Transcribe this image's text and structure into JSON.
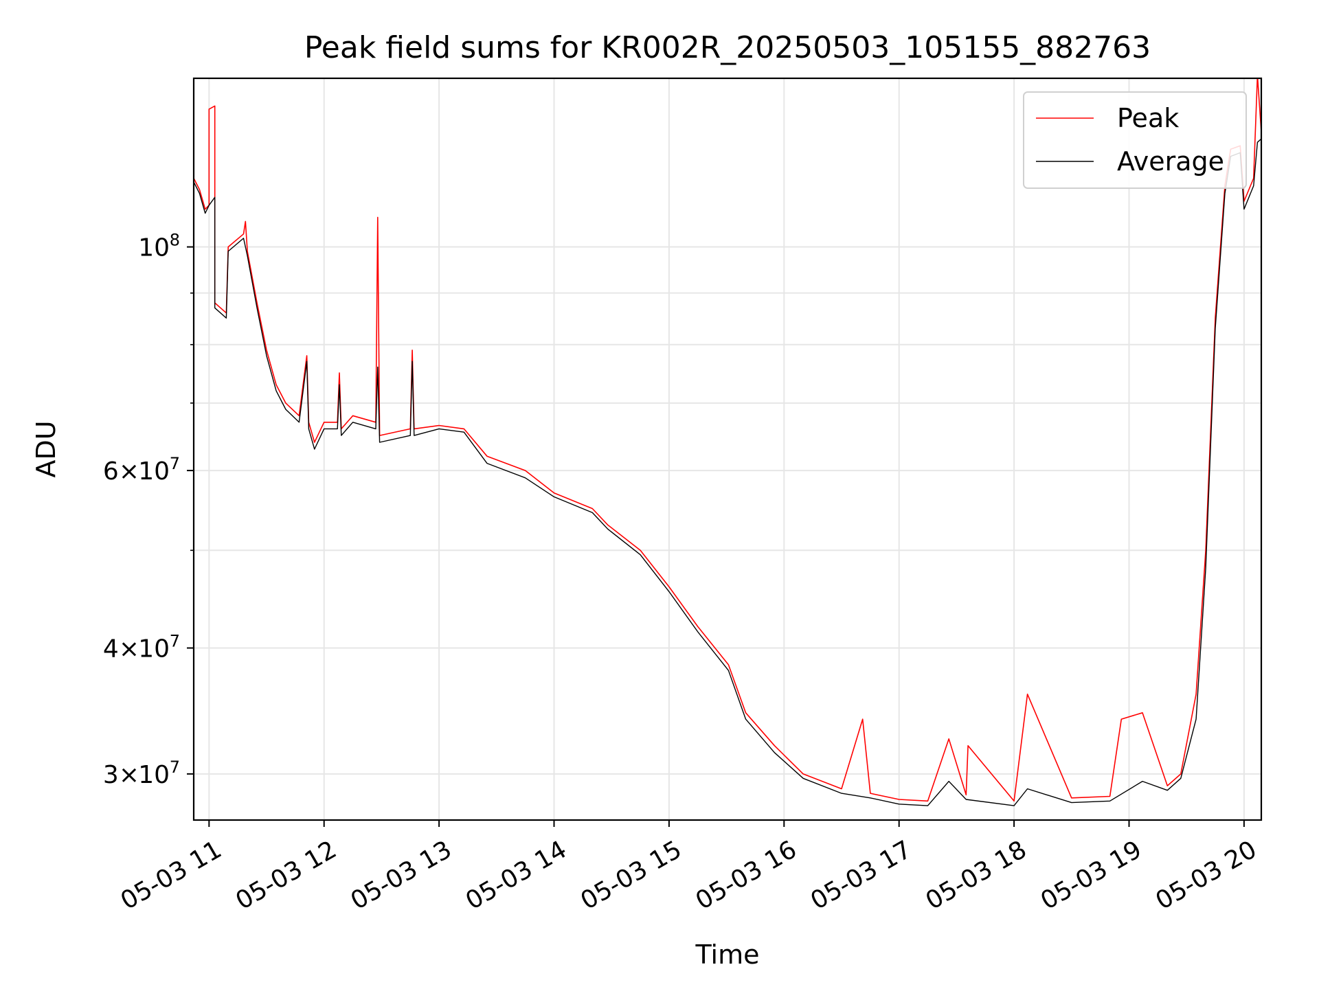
{
  "chart_data": {
    "type": "line",
    "title": "Peak field sums for KR002R_20250503_105155_882763",
    "xlabel": "Time",
    "ylabel": "ADU",
    "y_scale": "log",
    "grid": true,
    "legend_position": "top-right",
    "xlim": [
      "2025-05-03 10:52",
      "2025-05-03 20:09"
    ],
    "ylim": [
      27000000,
      147000000
    ],
    "x_ticks": [
      {
        "value": "2025-05-03 11:00",
        "label": "05-03 11"
      },
      {
        "value": "2025-05-03 12:00",
        "label": "05-03 12"
      },
      {
        "value": "2025-05-03 13:00",
        "label": "05-03 13"
      },
      {
        "value": "2025-05-03 14:00",
        "label": "05-03 14"
      },
      {
        "value": "2025-05-03 15:00",
        "label": "05-03 15"
      },
      {
        "value": "2025-05-03 16:00",
        "label": "05-03 16"
      },
      {
        "value": "2025-05-03 17:00",
        "label": "05-03 17"
      },
      {
        "value": "2025-05-03 18:00",
        "label": "05-03 18"
      },
      {
        "value": "2025-05-03 19:00",
        "label": "05-03 19"
      },
      {
        "value": "2025-05-03 20:00",
        "label": "05-03 20"
      }
    ],
    "y_ticks": [
      {
        "value": 30000000,
        "mantissa": "3",
        "exponent": "7"
      },
      {
        "value": 40000000,
        "mantissa": "4",
        "exponent": "7"
      },
      {
        "value": 60000000,
        "mantissa": "6",
        "exponent": "7"
      },
      {
        "value": 100000000,
        "mantissa": "",
        "exponent": "8"
      }
    ],
    "y_minor_ticks": [
      50000000,
      70000000,
      80000000,
      90000000
    ],
    "series": [
      {
        "name": "Peak",
        "color": "#ff0000",
        "points": [
          [
            "2025-05-03 10:52",
            117000000
          ],
          [
            "2025-05-03 10:55",
            114000000
          ],
          [
            "2025-05-03 10:58",
            109000000
          ],
          [
            "2025-05-03 11:00",
            110000000
          ],
          [
            "2025-05-03 11:00",
            137000000
          ],
          [
            "2025-05-03 11:03",
            138000000
          ],
          [
            "2025-05-03 11:03",
            88000000
          ],
          [
            "2025-05-03 11:09",
            86000000
          ],
          [
            "2025-05-03 11:10",
            100000000
          ],
          [
            "2025-05-03 11:18",
            103000000
          ],
          [
            "2025-05-03 11:19",
            106000000
          ],
          [
            "2025-05-03 11:20",
            99000000
          ],
          [
            "2025-05-03 11:25",
            88000000
          ],
          [
            "2025-05-03 11:30",
            79000000
          ],
          [
            "2025-05-03 11:35",
            73000000
          ],
          [
            "2025-05-03 11:40",
            70000000
          ],
          [
            "2025-05-03 11:47",
            68000000
          ],
          [
            "2025-05-03 11:51",
            78000000
          ],
          [
            "2025-05-03 11:52",
            67000000
          ],
          [
            "2025-05-03 11:55",
            64000000
          ],
          [
            "2025-05-03 12:00",
            67000000
          ],
          [
            "2025-05-03 12:07",
            67000000
          ],
          [
            "2025-05-03 12:08",
            75000000
          ],
          [
            "2025-05-03 12:09",
            66000000
          ],
          [
            "2025-05-03 12:15",
            68000000
          ],
          [
            "2025-05-03 12:27",
            67000000
          ],
          [
            "2025-05-03 12:28",
            107000000
          ],
          [
            "2025-05-03 12:29",
            65000000
          ],
          [
            "2025-05-03 12:45",
            66000000
          ],
          [
            "2025-05-03 12:46",
            79000000
          ],
          [
            "2025-05-03 12:47",
            66000000
          ],
          [
            "2025-05-03 13:00",
            66500000
          ],
          [
            "2025-05-03 13:13",
            66000000
          ],
          [
            "2025-05-03 13:25",
            62000000
          ],
          [
            "2025-05-03 13:45",
            60000000
          ],
          [
            "2025-05-03 14:00",
            57000000
          ],
          [
            "2025-05-03 14:20",
            55000000
          ],
          [
            "2025-05-03 14:28",
            53000000
          ],
          [
            "2025-05-03 14:45",
            50000000
          ],
          [
            "2025-05-03 15:00",
            46000000
          ],
          [
            "2025-05-03 15:15",
            42000000
          ],
          [
            "2025-05-03 15:31",
            38500000
          ],
          [
            "2025-05-03 15:40",
            34500000
          ],
          [
            "2025-05-03 15:55",
            32000000
          ],
          [
            "2025-05-03 16:10",
            30000000
          ],
          [
            "2025-05-03 16:30",
            29000000
          ],
          [
            "2025-05-03 16:41",
            34000000
          ],
          [
            "2025-05-03 16:45",
            28700000
          ],
          [
            "2025-05-03 17:00",
            28300000
          ],
          [
            "2025-05-03 17:15",
            28200000
          ],
          [
            "2025-05-03 17:26",
            32500000
          ],
          [
            "2025-05-03 17:35",
            28600000
          ],
          [
            "2025-05-03 17:36",
            32000000
          ],
          [
            "2025-05-03 18:00",
            28200000
          ],
          [
            "2025-05-03 18:07",
            36000000
          ],
          [
            "2025-05-03 18:30",
            28400000
          ],
          [
            "2025-05-03 18:50",
            28500000
          ],
          [
            "2025-05-03 18:56",
            34000000
          ],
          [
            "2025-05-03 19:07",
            34500000
          ],
          [
            "2025-05-03 19:20",
            29200000
          ],
          [
            "2025-05-03 19:27",
            30000000
          ],
          [
            "2025-05-03 19:35",
            36000000
          ],
          [
            "2025-05-03 19:40",
            50000000
          ],
          [
            "2025-05-03 19:45",
            85000000
          ],
          [
            "2025-05-03 19:50",
            115000000
          ],
          [
            "2025-05-03 19:53",
            125000000
          ],
          [
            "2025-05-03 19:58",
            126000000
          ],
          [
            "2025-05-03 20:00",
            111000000
          ],
          [
            "2025-05-03 20:05",
            117000000
          ],
          [
            "2025-05-03 20:07",
            148000000
          ],
          [
            "2025-05-03 20:09",
            130000000
          ]
        ]
      },
      {
        "name": "Average",
        "color": "#000000",
        "points": [
          [
            "2025-05-03 10:52",
            116000000
          ],
          [
            "2025-05-03 10:55",
            113000000
          ],
          [
            "2025-05-03 10:58",
            108000000
          ],
          [
            "2025-05-03 11:00",
            110000000
          ],
          [
            "2025-05-03 11:03",
            112000000
          ],
          [
            "2025-05-03 11:03",
            87000000
          ],
          [
            "2025-05-03 11:09",
            85000000
          ],
          [
            "2025-05-03 11:10",
            99000000
          ],
          [
            "2025-05-03 11:18",
            102000000
          ],
          [
            "2025-05-03 11:20",
            98000000
          ],
          [
            "2025-05-03 11:25",
            87000000
          ],
          [
            "2025-05-03 11:30",
            78000000
          ],
          [
            "2025-05-03 11:35",
            72000000
          ],
          [
            "2025-05-03 11:40",
            69000000
          ],
          [
            "2025-05-03 11:47",
            67000000
          ],
          [
            "2025-05-03 11:51",
            77000000
          ],
          [
            "2025-05-03 11:52",
            66000000
          ],
          [
            "2025-05-03 11:55",
            63000000
          ],
          [
            "2025-05-03 12:00",
            66000000
          ],
          [
            "2025-05-03 12:07",
            66000000
          ],
          [
            "2025-05-03 12:08",
            73000000
          ],
          [
            "2025-05-03 12:09",
            65000000
          ],
          [
            "2025-05-03 12:15",
            67000000
          ],
          [
            "2025-05-03 12:27",
            66000000
          ],
          [
            "2025-05-03 12:28",
            76000000
          ],
          [
            "2025-05-03 12:29",
            64000000
          ],
          [
            "2025-05-03 12:45",
            65000000
          ],
          [
            "2025-05-03 12:46",
            77000000
          ],
          [
            "2025-05-03 12:47",
            65000000
          ],
          [
            "2025-05-03 13:00",
            66000000
          ],
          [
            "2025-05-03 13:13",
            65500000
          ],
          [
            "2025-05-03 13:25",
            61000000
          ],
          [
            "2025-05-03 13:45",
            59000000
          ],
          [
            "2025-05-03 14:00",
            56500000
          ],
          [
            "2025-05-03 14:20",
            54500000
          ],
          [
            "2025-05-03 14:28",
            52500000
          ],
          [
            "2025-05-03 14:45",
            49500000
          ],
          [
            "2025-05-03 15:00",
            45500000
          ],
          [
            "2025-05-03 15:15",
            41500000
          ],
          [
            "2025-05-03 15:31",
            38000000
          ],
          [
            "2025-05-03 15:40",
            34000000
          ],
          [
            "2025-05-03 15:55",
            31500000
          ],
          [
            "2025-05-03 16:10",
            29700000
          ],
          [
            "2025-05-03 16:30",
            28700000
          ],
          [
            "2025-05-03 16:45",
            28400000
          ],
          [
            "2025-05-03 17:00",
            28000000
          ],
          [
            "2025-05-03 17:15",
            27900000
          ],
          [
            "2025-05-03 17:26",
            29500000
          ],
          [
            "2025-05-03 17:35",
            28300000
          ],
          [
            "2025-05-03 18:00",
            27900000
          ],
          [
            "2025-05-03 18:07",
            29000000
          ],
          [
            "2025-05-03 18:30",
            28100000
          ],
          [
            "2025-05-03 18:50",
            28200000
          ],
          [
            "2025-05-03 19:07",
            29500000
          ],
          [
            "2025-05-03 19:20",
            28900000
          ],
          [
            "2025-05-03 19:27",
            29700000
          ],
          [
            "2025-05-03 19:35",
            34000000
          ],
          [
            "2025-05-03 19:40",
            48000000
          ],
          [
            "2025-05-03 19:45",
            83000000
          ],
          [
            "2025-05-03 19:50",
            113000000
          ],
          [
            "2025-05-03 19:53",
            123000000
          ],
          [
            "2025-05-03 19:58",
            124000000
          ],
          [
            "2025-05-03 20:00",
            109000000
          ],
          [
            "2025-05-03 20:05",
            115000000
          ],
          [
            "2025-05-03 20:07",
            127000000
          ],
          [
            "2025-05-03 20:09",
            128000000
          ]
        ]
      }
    ]
  }
}
